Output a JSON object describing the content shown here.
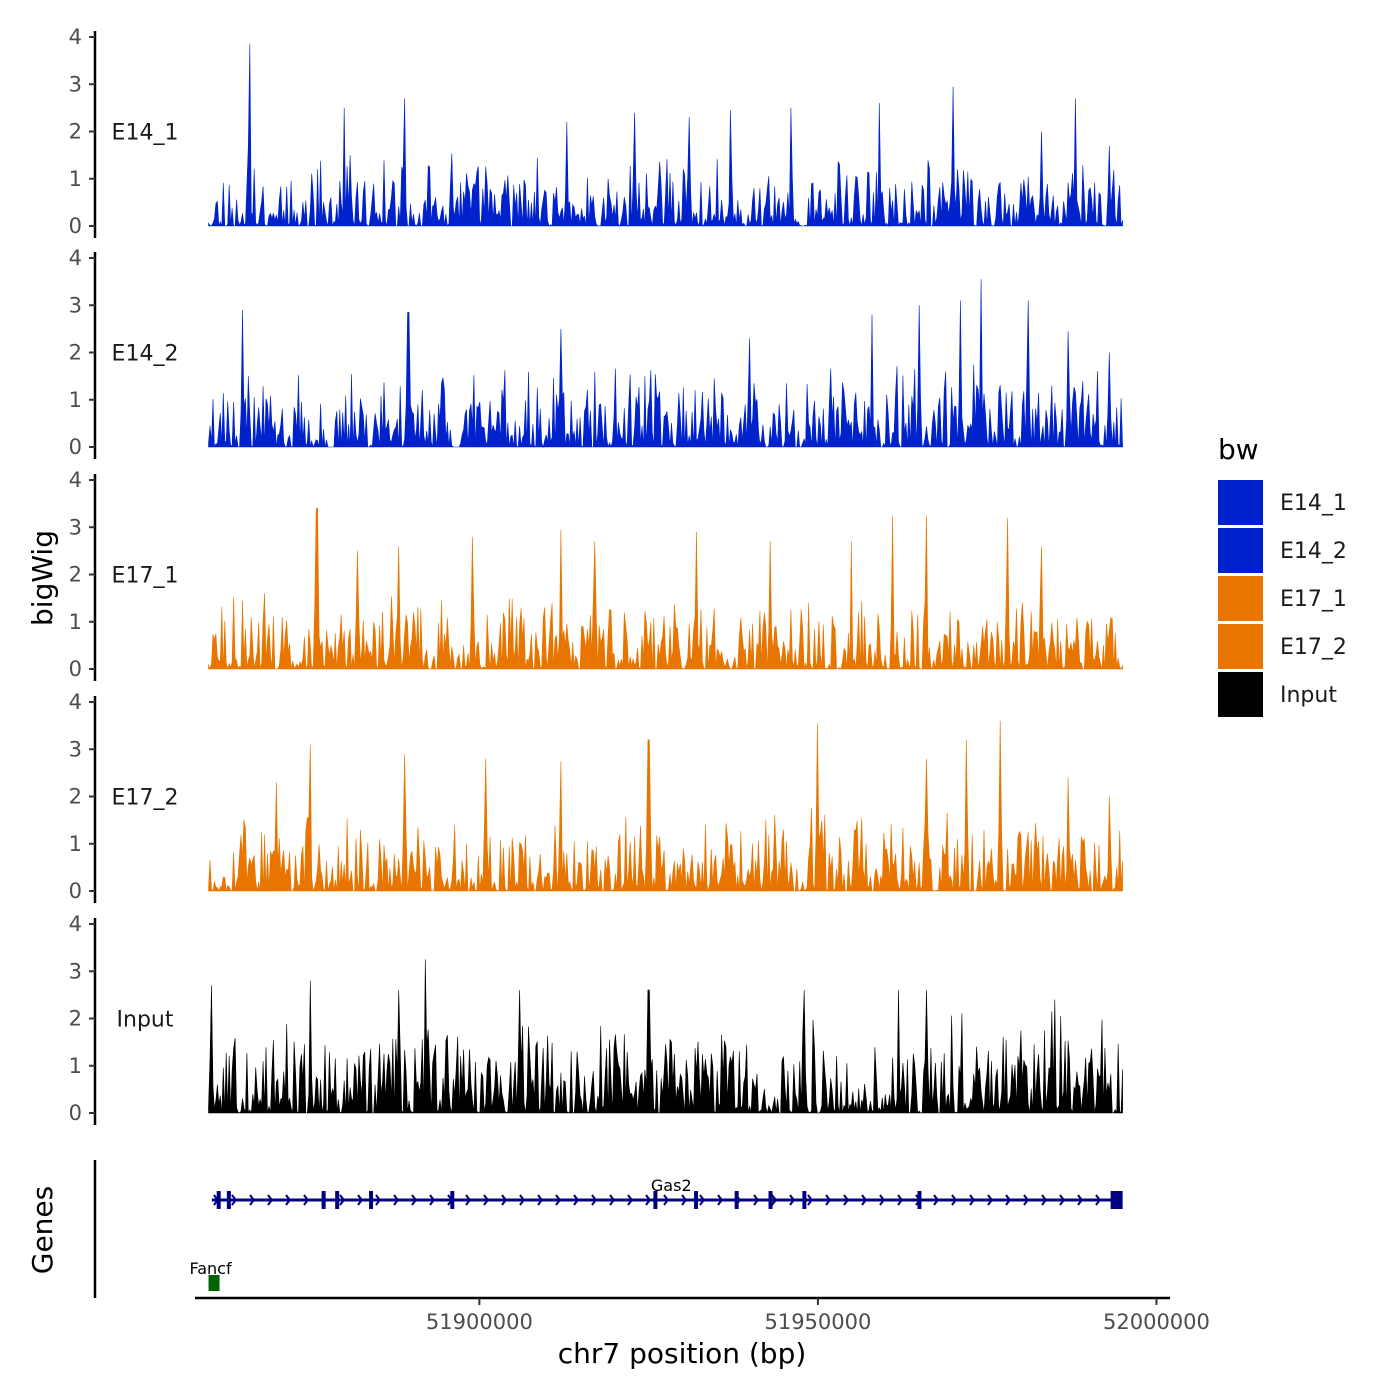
{
  "chart_data": {
    "type": "area",
    "title": "",
    "xlabel": "chr7 position (bp)",
    "ylabel": "bigWig",
    "genes_label": "Genes",
    "xlim": [
      51858000,
      52002000
    ],
    "data_range": [
      51860000,
      51995000
    ],
    "x_ticks": [
      51900000,
      51950000,
      52000000
    ],
    "x_tick_labels": [
      "51900000",
      "51950000",
      "52000000"
    ],
    "y_ticks": [
      0,
      1,
      2,
      3,
      4
    ],
    "y_tick_labels": [
      "0",
      "1",
      "2",
      "3",
      "4"
    ],
    "ylim": [
      0,
      4
    ],
    "tracks": [
      {
        "name": "E14_1",
        "color": "#0022CC",
        "peaks": [
          [
            51866000,
            3.85
          ],
          [
            51880000,
            2.5
          ],
          [
            51889000,
            2.7
          ],
          [
            51913000,
            2.2
          ],
          [
            51923000,
            2.4
          ],
          [
            51931000,
            2.3
          ],
          [
            51937000,
            2.45
          ],
          [
            51946000,
            2.5
          ],
          [
            51959000,
            2.6
          ],
          [
            51970000,
            2.95
          ],
          [
            51983000,
            2.0
          ],
          [
            51988000,
            2.7
          ],
          [
            51993000,
            1.7
          ]
        ],
        "max_noise": 1.6,
        "seed": 11
      },
      {
        "name": "E14_2",
        "color": "#0022CC",
        "peaks": [
          [
            51865000,
            2.9
          ],
          [
            51889500,
            2.85
          ],
          [
            51912000,
            2.5
          ],
          [
            51940000,
            2.3
          ],
          [
            51958000,
            2.8
          ],
          [
            51965000,
            3.0
          ],
          [
            51971000,
            3.1
          ],
          [
            51974000,
            3.55
          ],
          [
            51981000,
            3.1
          ],
          [
            51987000,
            2.45
          ],
          [
            51993000,
            2.0
          ]
        ],
        "gaps": [
          [
            51877500,
            51878500
          ],
          [
            51896000,
            51897200
          ]
        ],
        "max_noise": 1.9,
        "seed": 23
      },
      {
        "name": "E17_1",
        "color": "#E87500",
        "peaks": [
          [
            51876000,
            3.4
          ],
          [
            51882000,
            2.5
          ],
          [
            51888000,
            2.6
          ],
          [
            51899000,
            2.8
          ],
          [
            51912000,
            2.95
          ],
          [
            51917000,
            2.7
          ],
          [
            51932000,
            2.9
          ],
          [
            51943000,
            2.7
          ],
          [
            51955000,
            2.7
          ],
          [
            51961000,
            3.25
          ],
          [
            51966000,
            3.25
          ],
          [
            51978000,
            3.2
          ],
          [
            51983000,
            2.6
          ]
        ],
        "max_noise": 1.8,
        "seed": 37
      },
      {
        "name": "E17_2",
        "color": "#E87500",
        "peaks": [
          [
            51870000,
            2.3
          ],
          [
            51875000,
            3.1
          ],
          [
            51889000,
            2.9
          ],
          [
            51901000,
            2.8
          ],
          [
            51912000,
            2.75
          ],
          [
            51925000,
            3.2
          ],
          [
            51950000,
            3.55
          ],
          [
            51966000,
            2.8
          ],
          [
            51972000,
            3.2
          ],
          [
            51977000,
            3.6
          ],
          [
            51987000,
            2.4
          ],
          [
            51993000,
            2.0
          ]
        ],
        "max_noise": 1.9,
        "seed": 53
      },
      {
        "name": "Input",
        "color": "#000000",
        "peaks": [
          [
            51860500,
            2.7
          ],
          [
            51875000,
            2.8
          ],
          [
            51888000,
            2.6
          ],
          [
            51892000,
            3.25
          ],
          [
            51906000,
            2.6
          ],
          [
            51925000,
            2.6
          ],
          [
            51948000,
            2.6
          ],
          [
            51962000,
            2.6
          ],
          [
            51966000,
            2.6
          ],
          [
            51985000,
            2.4
          ]
        ],
        "max_noise": 2.2,
        "seed": 71
      }
    ],
    "genes": [
      {
        "name": "Gas2",
        "color": "#000080",
        "start": 51860500,
        "end": 51995000,
        "strand": "+",
        "row": 1,
        "exons": [
          51861500,
          51863000,
          51877000,
          51879000,
          51884000,
          51896000,
          51926000,
          51932000,
          51938000,
          51943000,
          51948000,
          51965000
        ]
      },
      {
        "name": "Fancf",
        "color": "#006400",
        "start": 51860000,
        "end": 51861500,
        "strand": "-",
        "row": 2,
        "exons": []
      }
    ],
    "legend": {
      "title": "bw",
      "placement": "right",
      "items": [
        {
          "label": "E14_1",
          "color": "#0022CC"
        },
        {
          "label": "E14_2",
          "color": "#0022CC"
        },
        {
          "label": "E17_1",
          "color": "#E87500"
        },
        {
          "label": "E17_2",
          "color": "#E87500"
        },
        {
          "label": "Input",
          "color": "#000000"
        }
      ]
    }
  }
}
